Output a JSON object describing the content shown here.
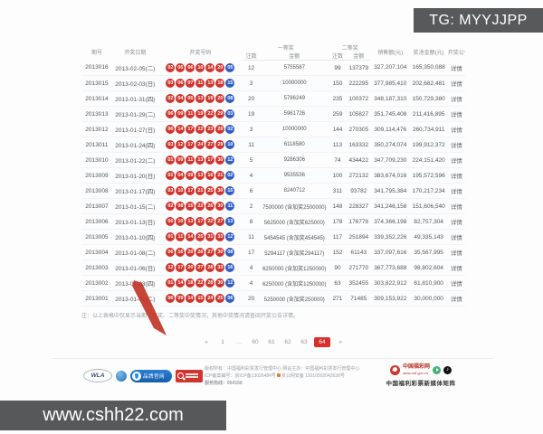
{
  "overlay": {
    "tg_label": "TG: MYYJJPP",
    "watermark": "www.cshh22.com"
  },
  "colors": {
    "red_ball": "#d0342c",
    "blue_ball": "#2f5fc4",
    "accent_red": "#d9302c"
  },
  "table": {
    "headers": {
      "issue": "期号",
      "date": "开奖日期",
      "numbers": "开奖号码",
      "first": "一等奖",
      "second": "二等奖",
      "count": "注数",
      "amount": "金额",
      "sales": "销售额(元)",
      "pool": "奖池金额(元)",
      "notice": "开奖公告"
    },
    "detail_label": "详情",
    "rows": [
      {
        "issue": "2013016",
        "date": "2013-02-05(二)",
        "reds": [
          "02",
          "05",
          "06",
          "10",
          "14",
          "20"
        ],
        "blue": "05",
        "first_count": "12",
        "first_amount": "5755587",
        "second_count": "99",
        "second_amount": "137379",
        "sales": "327,207,104",
        "pool": "165,350,088"
      },
      {
        "issue": "2013015",
        "date": "2013-02-03(日)",
        "reds": [
          "03",
          "06",
          "07",
          "11",
          "13",
          "18"
        ],
        "blue": "15",
        "first_count": "3",
        "first_amount": "10000000",
        "second_count": "150",
        "second_amount": "222295",
        "sales": "377,985,410",
        "pool": "202,682,481"
      },
      {
        "issue": "2013014",
        "date": "2013-01-31(四)",
        "reds": [
          "02",
          "04",
          "05",
          "13",
          "19",
          "20"
        ],
        "blue": "08",
        "first_count": "20",
        "first_amount": "5786249",
        "second_count": "235",
        "second_amount": "100372",
        "sales": "348,187,310",
        "pool": "150,729,380"
      },
      {
        "issue": "2013013",
        "date": "2013-01-29(二)",
        "reds": [
          "06",
          "09",
          "11",
          "19",
          "22",
          "29"
        ],
        "blue": "03",
        "first_count": "19",
        "first_amount": "5961726",
        "second_count": "259",
        "second_amount": "105827",
        "sales": "351,745,408",
        "pool": "211,416,895"
      },
      {
        "issue": "2013012",
        "date": "2013-01-27(日)",
        "reds": [
          "06",
          "14",
          "17",
          "22",
          "23",
          "29"
        ],
        "blue": "02",
        "first_count": "3",
        "first_amount": "10000000",
        "second_count": "144",
        "second_amount": "270305",
        "sales": "309,114,476",
        "pool": "260,734,911"
      },
      {
        "issue": "2013011",
        "date": "2013-01-24(四)",
        "reds": [
          "03",
          "12",
          "17",
          "24",
          "27",
          "29"
        ],
        "blue": "10",
        "first_count": "11",
        "first_amount": "6118580",
        "second_count": "113",
        "second_amount": "163332",
        "sales": "350,274,074",
        "pool": "199,912,372"
      },
      {
        "issue": "2013010",
        "date": "2013-01-22(二)",
        "reds": [
          "01",
          "09",
          "11",
          "13",
          "17",
          "30"
        ],
        "blue": "12",
        "first_count": "5",
        "first_amount": "9286306",
        "second_count": "74",
        "second_amount": "434422",
        "sales": "347,709,230",
        "pool": "224,151,420"
      },
      {
        "issue": "2013009",
        "date": "2013-01-20(日)",
        "reds": [
          "01",
          "04",
          "09",
          "13",
          "16",
          "21"
        ],
        "blue": "02",
        "first_count": "4",
        "first_amount": "9535536",
        "second_count": "100",
        "second_amount": "272132",
        "sales": "383,674,016",
        "pool": "195,572,596"
      },
      {
        "issue": "2013008",
        "date": "2013-01-17(四)",
        "reds": [
          "03",
          "10",
          "17",
          "21",
          "25",
          "30"
        ],
        "blue": "15",
        "first_count": "6",
        "first_amount": "8240712",
        "second_count": "311",
        "second_amount": "93782",
        "sales": "341,795,384",
        "pool": "170,217,234"
      },
      {
        "issue": "2013007",
        "date": "2013-01-15(二)",
        "reds": [
          "02",
          "08",
          "15",
          "22",
          "26",
          "30"
        ],
        "blue": "11",
        "first_count": "2",
        "first_amount": "7500000 (含加奖2500000)",
        "second_count": "148",
        "second_amount": "228327",
        "sales": "341,246,158",
        "pool": "151,606,540"
      },
      {
        "issue": "2013006",
        "date": "2013-01-13(日)",
        "reds": [
          "06",
          "10",
          "13",
          "17",
          "22",
          "27"
        ],
        "blue": "13",
        "first_count": "8",
        "first_amount": "5625000 (含加奖625000)",
        "second_count": "178",
        "second_amount": "176778",
        "sales": "374,366,198",
        "pool": "82,757,304"
      },
      {
        "issue": "2013005",
        "date": "2013-01-10(四)",
        "reds": [
          "01",
          "11",
          "14",
          "25",
          "31",
          "33"
        ],
        "blue": "12",
        "first_count": "11",
        "first_amount": "5454545 (含加奖454545)",
        "second_count": "117",
        "second_amount": "251894",
        "sales": "339,352,226",
        "pool": "49,335,143"
      },
      {
        "issue": "2013004",
        "date": "2013-01-08(二)",
        "reds": [
          "06",
          "16",
          "20",
          "26",
          "27",
          "30"
        ],
        "blue": "08",
        "first_count": "17",
        "first_amount": "5294117 (含加奖294117)",
        "second_count": "152",
        "second_amount": "61143",
        "sales": "337,097,616",
        "pool": "35,567,995"
      },
      {
        "issue": "2013003",
        "date": "2013-01-06(日)",
        "reds": [
          "12",
          "17",
          "20",
          "27",
          "28",
          "33"
        ],
        "blue": "16",
        "first_count": "4",
        "first_amount": "6250000 (含加奖1250000)",
        "second_count": "90",
        "second_amount": "271770",
        "sales": "367,773,688",
        "pool": "98,802,604"
      },
      {
        "issue": "2013002",
        "date": "2013-01-03(四)",
        "reds": [
          "01",
          "14",
          "18",
          "22",
          "28",
          "30"
        ],
        "blue": "12",
        "first_count": "4",
        "first_amount": "6250000 (含加奖1250000)",
        "second_count": "63",
        "second_amount": "352455",
        "sales": "303,822,912",
        "pool": "61,810,900"
      },
      {
        "issue": "2013001",
        "date": "2013-01-01(二)",
        "reds": [
          "06",
          "09",
          "14",
          "15",
          "24",
          "25"
        ],
        "blue": "06",
        "first_count": "20",
        "first_amount": "5250000 (含加奖250000)",
        "second_count": "271",
        "second_amount": "71485",
        "sales": "309,153,922",
        "pool": "30,000,000"
      }
    ]
  },
  "note": "注：以上表格中仅显示当期一等奖、二等奖中奖情况，其他中奖情况请查阅开奖公告详情。",
  "pagination": {
    "items": [
      "«",
      "1",
      "…",
      "60",
      "61",
      "62",
      "63",
      "64",
      "»"
    ],
    "active": "64"
  },
  "footer": {
    "wla_label": "WLA",
    "brand_badge_label": "品牌官网",
    "copyright_line1": "版权所有：中国福利彩票发行管理中心  网站主办：中国福利彩票发行管理中心",
    "icp_line_a": "ICP备案编号：京ICP备13026484号",
    "icp_line_b": "京公网安备 11010502042638号",
    "hotline": "服务热线：954168",
    "cwl_name": "中国福彩网",
    "cwl_url": "www.cwl.gov.cn",
    "tiktok_glyph": "♪",
    "matrix_label": "中国福利彩票新媒体矩阵"
  }
}
